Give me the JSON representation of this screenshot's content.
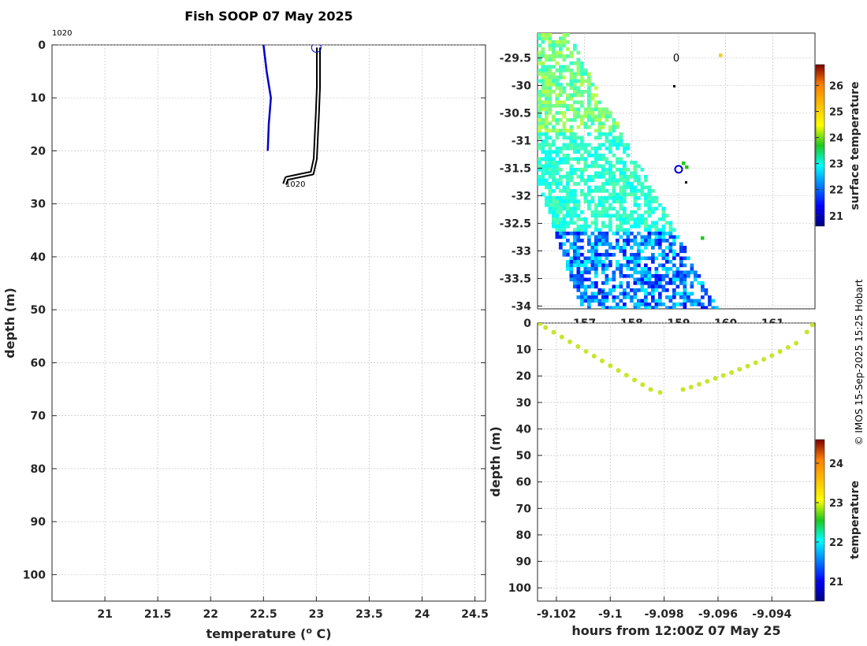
{
  "figure": {
    "title": "Fish SOOP 07 May 2025",
    "credit": "© IMOS 15-Sep-2025 15:25 Hobart"
  },
  "chart_data": [
    {
      "type": "line",
      "name": "profile",
      "title": "Fish SOOP 07 May 2025",
      "xlabel": "temperature (o C)",
      "ylabel": "depth (m)",
      "xlim": [
        20.5,
        24.6
      ],
      "ylim": [
        105,
        0
      ],
      "y_reversed": true,
      "grid": true,
      "x_ticks": [
        "21",
        "21.5",
        "22",
        "22.5",
        "23",
        "23.5",
        "24",
        "24.5"
      ],
      "y_ticks": [
        "0",
        "10",
        "20",
        "30",
        "40",
        "50",
        "60",
        "70",
        "80",
        "90",
        "100"
      ],
      "annotations": [
        "1020",
        "1020"
      ],
      "series": [
        {
          "color": "#0000cc",
          "points": [
            [
              22.5,
              0
            ],
            [
              22.53,
              5
            ],
            [
              22.57,
              10
            ],
            [
              22.55,
              15
            ],
            [
              22.54,
              20
            ]
          ]
        },
        {
          "color": "#000000",
          "points": [
            [
              23.02,
              0.5
            ],
            [
              23.02,
              3
            ],
            [
              23.02,
              8
            ],
            [
              23.01,
              13
            ],
            [
              23.0,
              17
            ],
            [
              22.99,
              21.5
            ],
            [
              22.96,
              24.2
            ],
            [
              22.72,
              25.2
            ],
            [
              22.7,
              26.3
            ]
          ]
        }
      ],
      "marker": {
        "x": 23.0,
        "y": 0.5
      }
    },
    {
      "type": "heatmap",
      "name": "surface-temperature-map",
      "colorbar_label": "surface temperature",
      "colorbar_ticks": [
        "21",
        "22",
        "23",
        "24",
        "25",
        "26"
      ],
      "colorbar_range": [
        20.6,
        26.8
      ],
      "x_ticks": [
        "157",
        "158",
        "159",
        "160",
        "161"
      ],
      "y_ticks": [
        "-29.5",
        "-30",
        "-30.5",
        "-31",
        "-31.5",
        "-32",
        "-32.5",
        "-33",
        "-33.5",
        "-34"
      ],
      "xlim": [
        156.0,
        161.9
      ],
      "ylim": [
        -34.05,
        -29.05
      ],
      "contour_label": "0",
      "station": {
        "lon": 159.0,
        "lat": -31.52
      }
    },
    {
      "type": "scatter",
      "name": "depth-time-section",
      "xlabel": "hours from 12:00Z 07 May 25",
      "ylabel": "depth (m)",
      "colorbar_label": "temperature",
      "colorbar_ticks": [
        "21",
        "22",
        "23",
        "24"
      ],
      "colorbar_range": [
        20.5,
        24.6
      ],
      "x_ticks": [
        "-9.102",
        "-9.1",
        "-9.098",
        "-9.096",
        "-9.094"
      ],
      "y_ticks": [
        "0",
        "10",
        "20",
        "30",
        "40",
        "50",
        "60",
        "70",
        "80",
        "90",
        "100"
      ],
      "xlim": [
        -9.1027,
        -9.0924
      ],
      "ylim": [
        105,
        0
      ],
      "y_reversed": true,
      "point_color": "#c8e62a",
      "points": [
        [
          -9.1026,
          0.2
        ],
        [
          -9.1024,
          1.7
        ],
        [
          -9.1021,
          3.5
        ],
        [
          -9.1018,
          5.3
        ],
        [
          -9.1015,
          7.1
        ],
        [
          -9.1012,
          8.9
        ],
        [
          -9.1009,
          10.7
        ],
        [
          -9.1006,
          12.5
        ],
        [
          -9.1003,
          14.3
        ],
        [
          -9.1,
          16.1
        ],
        [
          -9.0997,
          17.9
        ],
        [
          -9.0994,
          19.7
        ],
        [
          -9.0991,
          21.5
        ],
        [
          -9.0988,
          23.3
        ],
        [
          -9.0985,
          25.1
        ],
        [
          -9.09815,
          26.2
        ],
        [
          -9.0973,
          25.1
        ],
        [
          -9.097,
          24.2
        ],
        [
          -9.0967,
          23.1
        ],
        [
          -9.0964,
          22.0
        ],
        [
          -9.0961,
          20.9
        ],
        [
          -9.0958,
          19.8
        ],
        [
          -9.0955,
          18.7
        ],
        [
          -9.0952,
          17.5
        ],
        [
          -9.0949,
          16.3
        ],
        [
          -9.0946,
          15.0
        ],
        [
          -9.0943,
          13.7
        ],
        [
          -9.094,
          12.3
        ],
        [
          -9.0937,
          10.8
        ],
        [
          -9.0934,
          9.2
        ],
        [
          -9.0931,
          7.6
        ],
        [
          -9.0927,
          3.4
        ],
        [
          -9.0925,
          0.7
        ]
      ]
    }
  ]
}
